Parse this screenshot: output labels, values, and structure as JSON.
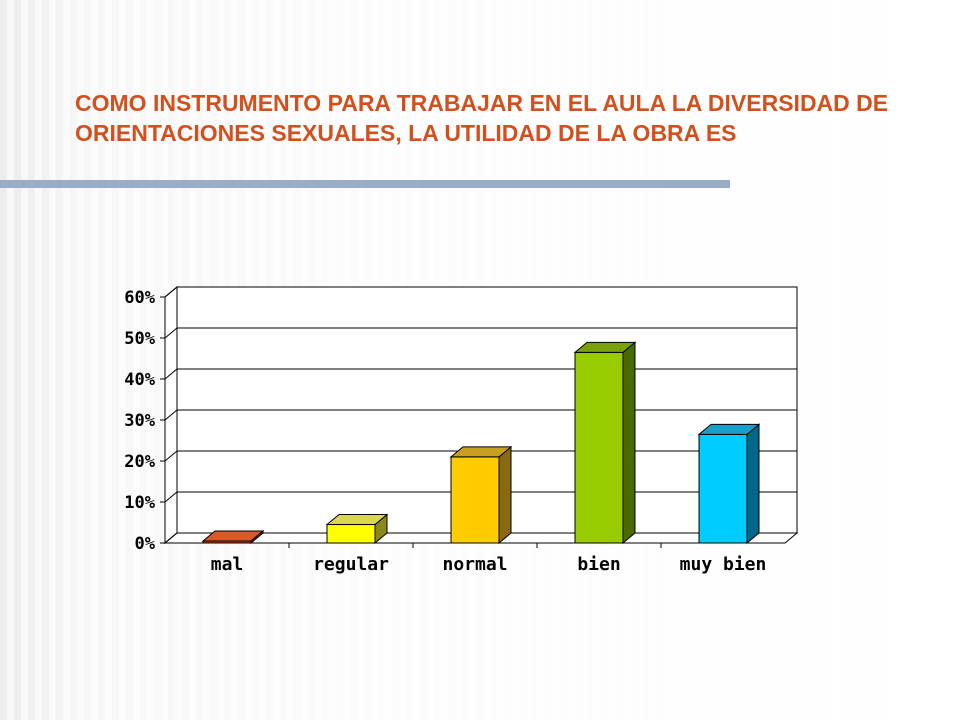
{
  "slide": {
    "title": "COMO INSTRUMENTO PARA TRABAJAR EN EL AULA LA DIVERSIDAD DE ORIENTACIONES SEXUALES, LA UTILIDAD DE LA OBRA ES"
  },
  "colors": {
    "title": "#d2501e",
    "rule": "#99aec6"
  },
  "chart_data": {
    "type": "bar",
    "title": "",
    "xlabel": "",
    "ylabel": "",
    "categories": [
      "mal",
      "regular",
      "normal",
      "bien",
      "muy bien"
    ],
    "values": [
      0.005,
      0.045,
      0.21,
      0.465,
      0.265
    ],
    "ylim": [
      0,
      0.6
    ],
    "yticks": [
      "0%",
      "10%",
      "20%",
      "30%",
      "40%",
      "50%",
      "60%"
    ],
    "grid": true,
    "legend": "none",
    "bar_colors": [
      {
        "front": "#c8401a",
        "top": "#d85a2a",
        "side": "#8a2a10"
      },
      {
        "front": "#ffff00",
        "top": "#d8d84a",
        "side": "#8a8a1a"
      },
      {
        "front": "#ffcc00",
        "top": "#c8a020",
        "side": "#8a6a10"
      },
      {
        "front": "#99cc00",
        "top": "#7aa00a",
        "side": "#4a6a00"
      },
      {
        "front": "#00ccff",
        "top": "#1aa0c8",
        "side": "#00668a"
      }
    ]
  }
}
